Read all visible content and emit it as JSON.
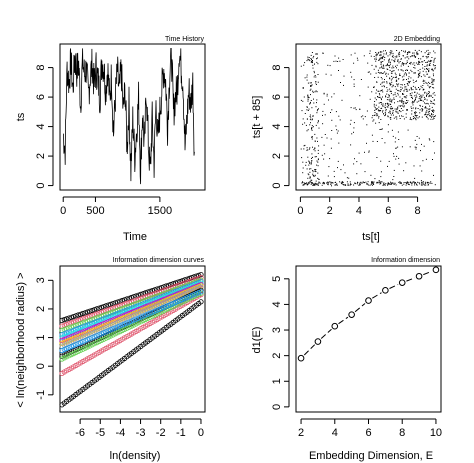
{
  "chart_data": [
    {
      "id": "time-history",
      "type": "line",
      "title": "Time History",
      "xlabel": "Time",
      "ylabel": "ts",
      "xlim": [
        -50,
        2200
      ],
      "ylim": [
        -0.3,
        9.6
      ],
      "xticks": [
        0,
        500,
        1500
      ],
      "yticks": [
        0,
        2,
        4,
        6,
        8
      ],
      "series": [
        {
          "x": [
            0,
            30,
            60,
            90,
            120,
            150,
            180,
            210,
            240,
            270,
            300,
            330,
            360,
            390,
            420,
            450,
            480,
            510,
            540,
            570,
            600,
            630,
            660,
            690,
            720,
            750,
            780,
            810,
            840,
            870,
            900,
            930,
            960,
            990,
            1020,
            1050,
            1080,
            1110,
            1140,
            1170,
            1200,
            1230,
            1260,
            1290,
            1320,
            1350,
            1380,
            1410,
            1440,
            1470,
            1500,
            1530,
            1560,
            1590,
            1620,
            1650,
            1680,
            1710,
            1740,
            1770,
            1800,
            1830,
            1860,
            1890,
            1920,
            1950,
            1980,
            2010,
            2040
          ],
          "y": [
            3.5,
            2.5,
            8.0,
            7.0,
            8.5,
            6.5,
            8.7,
            7.8,
            8.2,
            5.5,
            8.5,
            7.5,
            8.0,
            6.0,
            7.5,
            8.2,
            6.8,
            8.0,
            7.2,
            6.0,
            8.5,
            8.0,
            6.5,
            8.0,
            5.8,
            7.5,
            3.5,
            6.0,
            7.8,
            6.2,
            8.0,
            5.0,
            6.5,
            2.5,
            5.5,
            1.0,
            4.5,
            2.0,
            3.8,
            6.0,
            1.0,
            5.0,
            2.5,
            6.5,
            3.0,
            0.8,
            4.5,
            1.5,
            5.5,
            3.0,
            5.0,
            6.5,
            8.0,
            7.0,
            4.0,
            7.5,
            9.0,
            5.0,
            6.0,
            6.5,
            9.2,
            8.0,
            7.0,
            2.5,
            4.5,
            6.5,
            5.5,
            7.0,
            1.5
          ]
        }
      ]
    },
    {
      "id": "embedding-2d",
      "type": "scatter",
      "title": "2D Embedding",
      "xlabel": "ts[t]",
      "ylabel": "ts[t + 85]",
      "xlim": [
        -0.3,
        9.6
      ],
      "ylim": [
        -0.3,
        9.6
      ],
      "xticks": [
        0,
        2,
        4,
        6,
        8
      ],
      "yticks": [
        0,
        2,
        4,
        6,
        8
      ],
      "density": "dense cluster toward upper right (x 5-9, y 5-9), sparse lower left, vertical streaks near x ~0.5-1"
    },
    {
      "id": "information-dimension-curves",
      "type": "line",
      "title": "Information dimension curves",
      "xlabel": "ln(density)",
      "ylabel": "< ln(neighborhood radius) >",
      "xlim": [
        -7.0,
        0.2
      ],
      "ylim": [
        -1.6,
        3.5
      ],
      "xticks": [
        -6,
        -5,
        -4,
        -3,
        -2,
        -1,
        0
      ],
      "yticks": [
        -1,
        0,
        1,
        2,
        3
      ],
      "series": [
        {
          "color": "#000000",
          "x": [
            -6.9,
            0.0
          ],
          "y": [
            1.6,
            3.2
          ]
        },
        {
          "color": "#DF536B",
          "x": [
            -6.9,
            0.0
          ],
          "y": [
            1.4,
            3.1
          ]
        },
        {
          "color": "#61D04F",
          "x": [
            -6.9,
            0.0
          ],
          "y": [
            1.25,
            3.0
          ]
        },
        {
          "color": "#2297E6",
          "x": [
            -6.9,
            0.0
          ],
          "y": [
            1.1,
            2.95
          ]
        },
        {
          "color": "#28E2E5",
          "x": [
            -6.9,
            0.0
          ],
          "y": [
            1.0,
            2.9
          ]
        },
        {
          "color": "#CD0BBC",
          "x": [
            -6.9,
            0.0
          ],
          "y": [
            0.9,
            2.85
          ]
        },
        {
          "color": "#F5C710",
          "x": [
            -6.9,
            0.0
          ],
          "y": [
            0.8,
            2.8
          ]
        },
        {
          "color": "#9E9E9E",
          "x": [
            -6.9,
            0.0
          ],
          "y": [
            0.7,
            2.75
          ]
        },
        {
          "color": "#000000",
          "x": [
            -6.9,
            0.0
          ],
          "y": [
            0.35,
            2.65
          ]
        },
        {
          "color": "#DF536B",
          "x": [
            -6.9,
            0.0
          ],
          "y": [
            -0.25,
            2.5
          ]
        },
        {
          "color": "#61D04F",
          "x": [
            -6.9,
            0.0
          ],
          "y": [
            0.25,
            2.55
          ]
        },
        {
          "color": "#2297E6",
          "x": [
            -6.9,
            0.0
          ],
          "y": [
            0.55,
            2.6
          ]
        },
        {
          "color": "#000000",
          "x": [
            -6.9,
            0.0
          ],
          "y": [
            -1.35,
            2.25
          ]
        }
      ]
    },
    {
      "id": "information-dimension",
      "type": "line",
      "title": "Information dimension",
      "xlabel": "Embedding Dimension, E",
      "ylabel": "d1(E)",
      "xlim": [
        1.7,
        10.3
      ],
      "ylim": [
        -0.2,
        5.5
      ],
      "xticks": [
        2,
        4,
        6,
        8,
        10
      ],
      "yticks": [
        0,
        1,
        2,
        3,
        4,
        5
      ],
      "series": [
        {
          "x": [
            2,
            3,
            4,
            5,
            6,
            7,
            8,
            9,
            10
          ],
          "y": [
            1.9,
            2.55,
            3.15,
            3.6,
            4.15,
            4.55,
            4.85,
            5.1,
            5.35
          ]
        }
      ]
    }
  ]
}
